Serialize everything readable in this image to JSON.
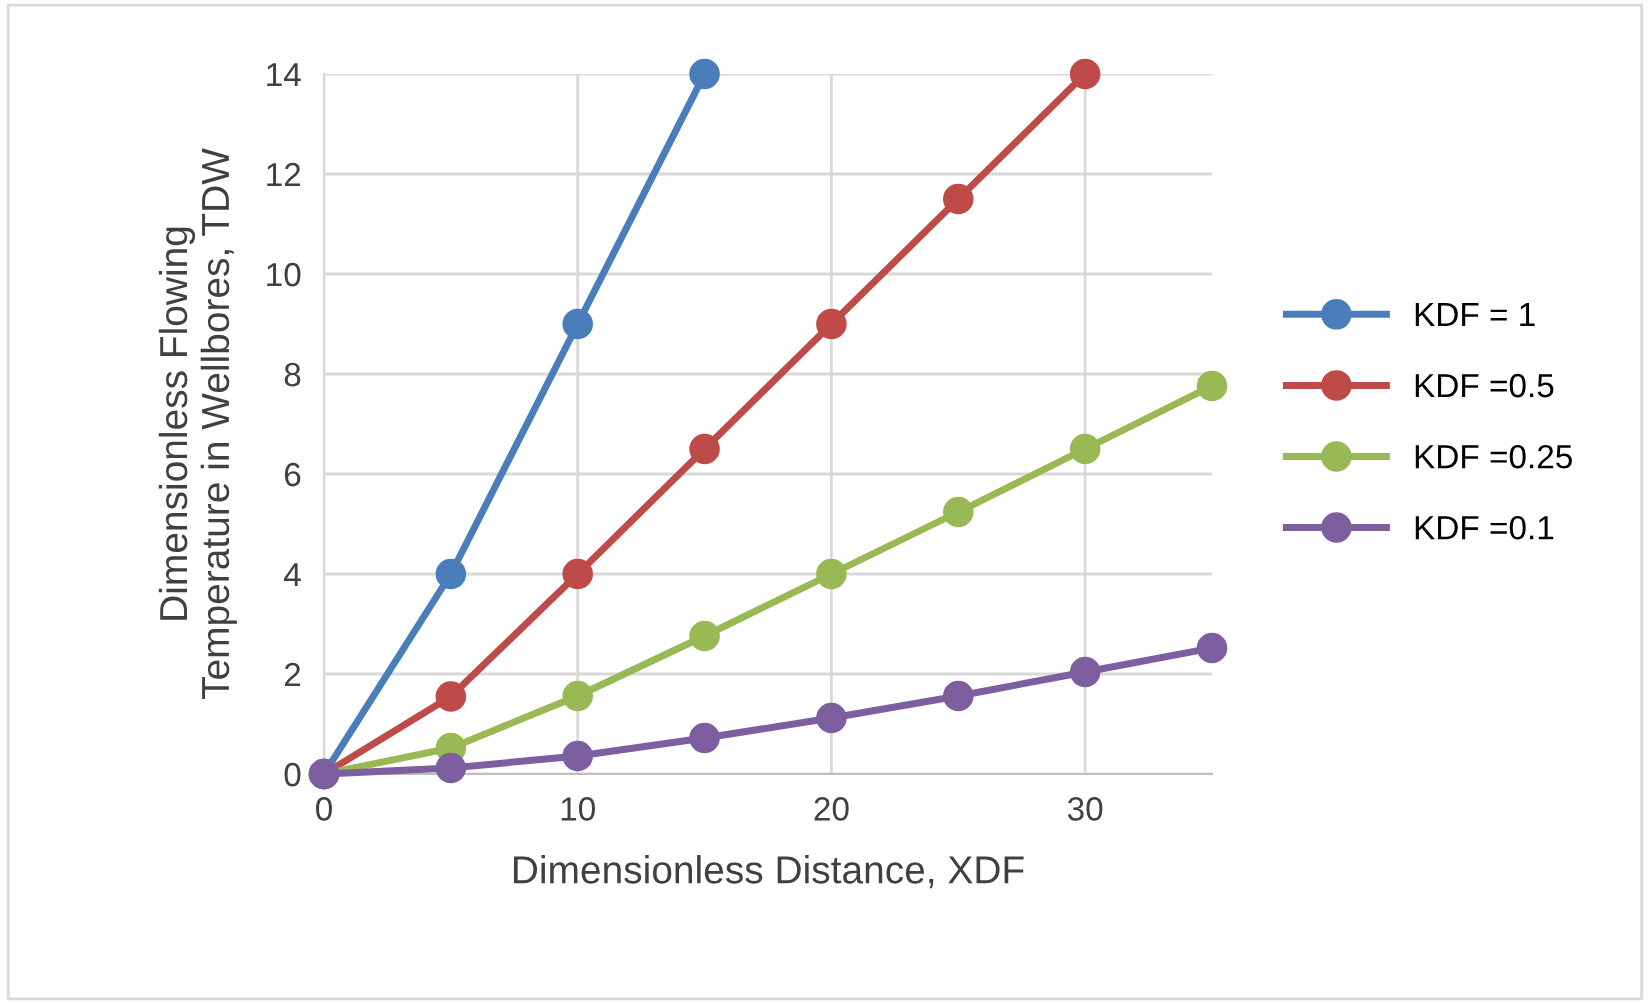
{
  "chart_data": {
    "type": "line",
    "xlabel": "Dimensionless Distance, XDF",
    "ylabel": "Dimensionless Flowing\nTemperature in Wellbores, TDW",
    "xlim": [
      0,
      35
    ],
    "xticks": [
      0,
      10,
      20,
      30
    ],
    "ylim": [
      0,
      14
    ],
    "yticks": [
      0,
      2,
      4,
      6,
      8,
      10,
      12,
      14
    ],
    "grid": true,
    "legend": "right",
    "marker": "circle",
    "line_style": "solid",
    "series": [
      {
        "name": "KDF = 1",
        "color": "#4a7ebb",
        "x": [
          0,
          5,
          10,
          15
        ],
        "values": [
          0,
          4,
          9,
          14
        ]
      },
      {
        "name": "KDF =0.5",
        "color": "#be4b48",
        "x": [
          0,
          5,
          10,
          15,
          20,
          25,
          30
        ],
        "values": [
          0,
          1.55,
          4,
          6.5,
          9,
          11.5,
          14
        ]
      },
      {
        "name": "KDF =0.25",
        "color": "#98b954",
        "x": [
          0,
          5,
          10,
          15,
          20,
          25,
          30,
          35
        ],
        "values": [
          0,
          0.52,
          1.56,
          2.76,
          4,
          5.24,
          6.5,
          7.76
        ]
      },
      {
        "name": "KDF =0.1",
        "color": "#7d5fa0",
        "x": [
          0,
          5,
          10,
          15,
          20,
          25,
          30,
          35
        ],
        "values": [
          0,
          0.12,
          0.36,
          0.72,
          1.12,
          1.56,
          2.04,
          2.52
        ]
      }
    ]
  }
}
